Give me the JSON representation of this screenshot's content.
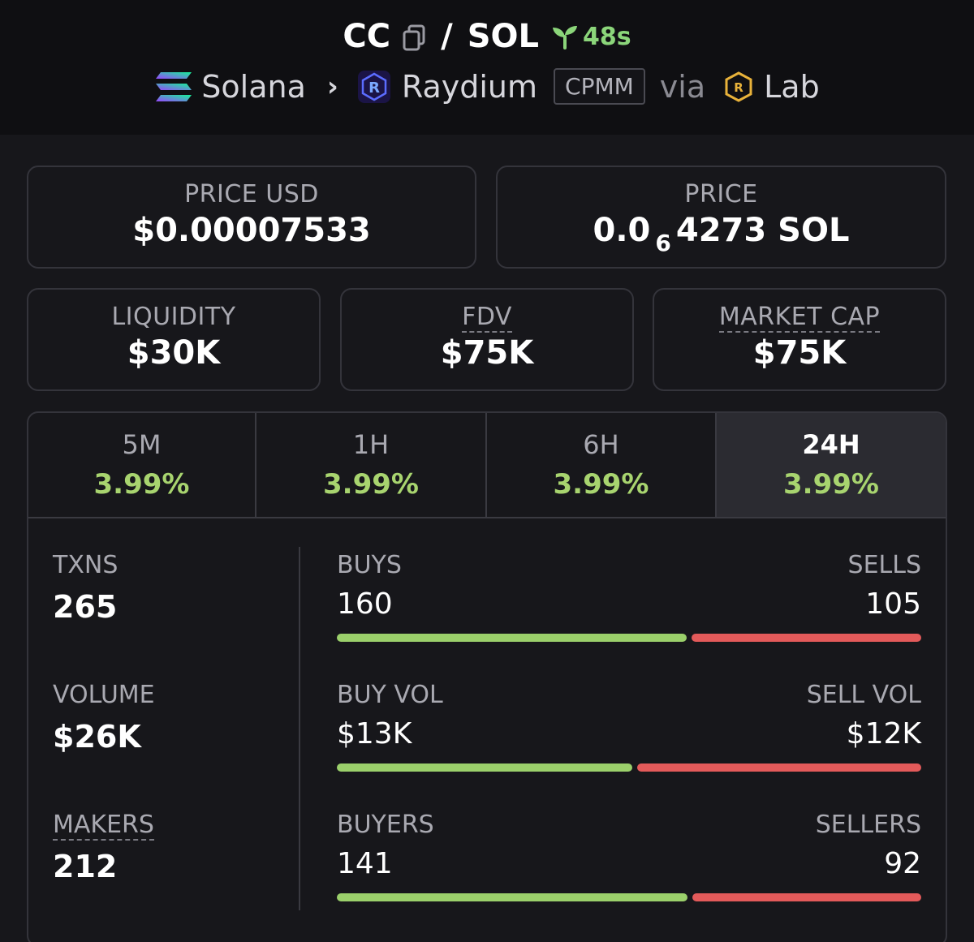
{
  "header": {
    "token": "CC",
    "quote": "SOL",
    "age": "48s",
    "chain": "Solana",
    "dex": "Raydium",
    "pool_type": "CPMM",
    "via": "via",
    "launchpad": "Lab"
  },
  "price_usd": {
    "label": "PRICE USD",
    "value": "$0.00007533"
  },
  "price_native": {
    "label": "PRICE",
    "prefix": "0.0",
    "zeros": "6",
    "digits": "4273",
    "unit": "SOL"
  },
  "liquidity": {
    "label": "LIQUIDITY",
    "value": "$30K"
  },
  "fdv": {
    "label": "FDV",
    "value": "$75K"
  },
  "market_cap": {
    "label": "MARKET CAP",
    "value": "$75K"
  },
  "tabs": [
    {
      "label": "5M",
      "change": "3.99%"
    },
    {
      "label": "1H",
      "change": "3.99%"
    },
    {
      "label": "6H",
      "change": "3.99%"
    },
    {
      "label": "24H",
      "change": "3.99%"
    }
  ],
  "active_tab": "24H",
  "stats": {
    "txns": {
      "label": "TXNS",
      "value": "265"
    },
    "volume": {
      "label": "VOLUME",
      "value": "$26K"
    },
    "makers": {
      "label": "MAKERS",
      "value": "212"
    }
  },
  "splits": {
    "txns": {
      "left_label": "BUYS",
      "right_label": "SELLS",
      "left_value": "160",
      "right_value": "105",
      "buy_share": 0.604
    },
    "volume": {
      "left_label": "BUY VOL",
      "right_label": "SELL VOL",
      "left_value": "$13K",
      "right_value": "$12K",
      "buy_share": 0.51
    },
    "makers": {
      "left_label": "BUYERS",
      "right_label": "SELLERS",
      "left_value": "141",
      "right_value": "92",
      "buy_share": 0.605
    }
  },
  "colors": {
    "up": "#a8d46f",
    "buy_bar": "#9bd06b",
    "sell_bar": "#e35a5a",
    "age": "#8bd57a"
  },
  "icons": [
    "copy-icon",
    "sprout-icon",
    "solana-logo-icon",
    "chevron-right-icon",
    "raydium-logo-icon",
    "lab-logo-icon"
  ]
}
